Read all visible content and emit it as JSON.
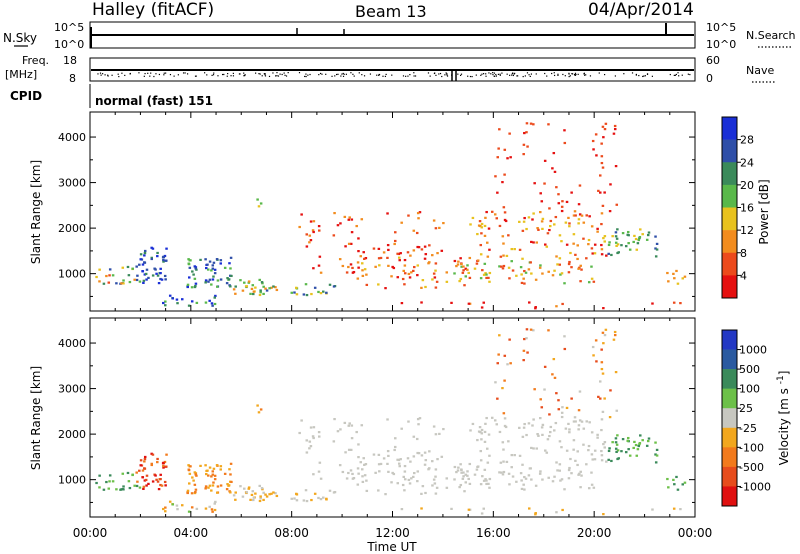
{
  "header": {
    "title": "Halley (fitACF)",
    "beam": "Beam 13",
    "date": "04/Apr/2014"
  },
  "strips": {
    "nsky": {
      "label": "N.Sky",
      "left_ticks": [
        "10^5",
        "10^0"
      ],
      "right_ticks": [
        "10^5",
        "10^0"
      ],
      "right_label": "N.Search"
    },
    "freq": {
      "label_top": "Freq.",
      "label_bottom": "[MHz]",
      "left_ticks": [
        "18",
        "8"
      ],
      "right_ticks": [
        "60",
        "0"
      ],
      "right_label": "Nave"
    },
    "cpid": {
      "label": "CPID",
      "mode_text": "normal (fast) 151"
    }
  },
  "colors": {
    "power_scale": [
      "#1a2fd6",
      "#2f4fa8",
      "#3a8a5a",
      "#59b84a",
      "#e8c21e",
      "#f28c1e",
      "#ec4a1c",
      "#e51010"
    ],
    "velocity_scale": [
      "#2338c4",
      "#2a5aa0",
      "#3a8a5a",
      "#6cc048",
      "#c7c7c0",
      "#f2a71e",
      "#f27a1c",
      "#e74c1c",
      "#e01010"
    ]
  },
  "chart_data": [
    {
      "type": "heatmap",
      "panel": "power",
      "ylabel": "Slant Range [km]",
      "yticks": [
        "4000",
        "3000",
        "2000",
        "1000"
      ],
      "ylim": [
        180,
        4550
      ],
      "xlim": [
        "00:00",
        "24:00"
      ],
      "colorbar_label": "Power [dB]",
      "colorbar_ticks": [
        "28",
        "24",
        "20",
        "16",
        "12",
        "8",
        "4"
      ],
      "colorbar_range": [
        0,
        32
      ]
    },
    {
      "type": "heatmap",
      "panel": "velocity",
      "ylabel": "Slant Range [km]",
      "yticks": [
        "4000",
        "3000",
        "2000",
        "1000"
      ],
      "ylim": [
        180,
        4550
      ],
      "xlim": [
        "00:00",
        "24:00"
      ],
      "colorbar_label": "Velocity [m s^-1]",
      "colorbar_ticks": [
        "1000",
        "500",
        "100",
        "25",
        "-25",
        "-100",
        "-500",
        "-1000"
      ]
    }
  ],
  "xaxis": {
    "ticks": [
      "00:00",
      "04:00",
      "08:00",
      "12:00",
      "16:00",
      "20:00",
      "00:00"
    ],
    "label": "Time UT"
  }
}
